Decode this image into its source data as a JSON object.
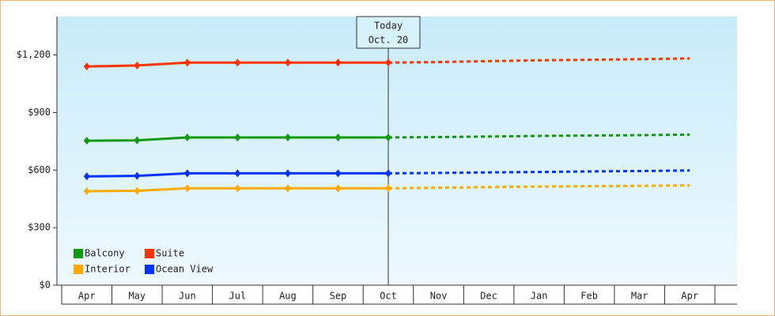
{
  "chart_data": {
    "type": "line",
    "categories": [
      "Apr",
      "May",
      "Jun",
      "Jul",
      "Aug",
      "Sep",
      "Oct",
      "Nov",
      "Dec",
      "Jan",
      "Feb",
      "Mar",
      "Apr"
    ],
    "series": [
      {
        "name": "Balcony",
        "color": "#119911",
        "values": [
          753,
          755,
          770,
          770,
          770,
          770,
          770,
          null,
          null,
          null,
          null,
          null,
          null
        ],
        "forecast_values": [
          null,
          null,
          null,
          null,
          null,
          null,
          770,
          772,
          775,
          778,
          780,
          782,
          785
        ]
      },
      {
        "name": "Suite",
        "color": "#ff3300",
        "values": [
          1140,
          1145,
          1160,
          1160,
          1160,
          1160,
          1160,
          null,
          null,
          null,
          null,
          null,
          null
        ],
        "forecast_values": [
          null,
          null,
          null,
          null,
          null,
          null,
          1160,
          1163,
          1168,
          1172,
          1175,
          1178,
          1182
        ]
      },
      {
        "name": "Interior",
        "color": "#ffaa00",
        "values": [
          490,
          492,
          505,
          505,
          505,
          505,
          505,
          null,
          null,
          null,
          null,
          null,
          null
        ],
        "forecast_values": [
          null,
          null,
          null,
          null,
          null,
          null,
          505,
          508,
          511,
          514,
          516,
          518,
          520
        ]
      },
      {
        "name": "Ocean View",
        "color": "#0033ff",
        "values": [
          567,
          570,
          583,
          583,
          583,
          583,
          583,
          null,
          null,
          null,
          null,
          null,
          null
        ],
        "forecast_values": [
          null,
          null,
          null,
          null,
          null,
          null,
          583,
          585,
          588,
          590,
          593,
          595,
          598
        ]
      }
    ],
    "today_label": [
      "Today",
      "Oct. 20"
    ],
    "ylim": [
      0,
      1400
    ],
    "yticks": [
      {
        "value": 0,
        "label": "$0"
      },
      {
        "value": 300,
        "label": "$300"
      },
      {
        "value": 600,
        "label": "$600"
      },
      {
        "value": 900,
        "label": "$900"
      },
      {
        "value": 1200,
        "label": "$1,200"
      }
    ],
    "legend": "lower left"
  }
}
